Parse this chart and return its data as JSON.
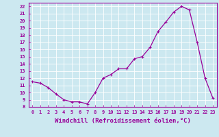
{
  "x": [
    0,
    1,
    2,
    3,
    4,
    5,
    6,
    7,
    8,
    9,
    10,
    11,
    12,
    13,
    14,
    15,
    16,
    17,
    18,
    19,
    20,
    21,
    22,
    23
  ],
  "y": [
    11.5,
    11.3,
    10.7,
    9.8,
    9.0,
    8.7,
    8.7,
    8.4,
    10.0,
    12.0,
    12.5,
    13.3,
    13.3,
    14.7,
    15.0,
    16.3,
    18.5,
    19.8,
    21.2,
    22.0,
    21.5,
    17.0,
    12.0,
    9.2
  ],
  "line_color": "#990099",
  "marker": "+",
  "marker_size": 3,
  "markeredgewidth": 0.8,
  "linewidth": 0.9,
  "xlim": [
    -0.5,
    23.5
  ],
  "ylim": [
    8,
    22.5
  ],
  "yticks": [
    8,
    9,
    10,
    11,
    12,
    13,
    14,
    15,
    16,
    17,
    18,
    19,
    20,
    21,
    22
  ],
  "xticks": [
    0,
    1,
    2,
    3,
    4,
    5,
    6,
    7,
    8,
    9,
    10,
    11,
    12,
    13,
    14,
    15,
    16,
    17,
    18,
    19,
    20,
    21,
    22,
    23
  ],
  "xlabel": "Windchill (Refroidissement éolien,°C)",
  "background_color": "#cce8f0",
  "grid_color": "#ffffff",
  "tick_color": "#990099",
  "label_color": "#990099",
  "font_size_axis": 6.5,
  "font_size_tick": 5.0,
  "fig_width": 3.2,
  "fig_height": 2.0,
  "dpi": 100
}
